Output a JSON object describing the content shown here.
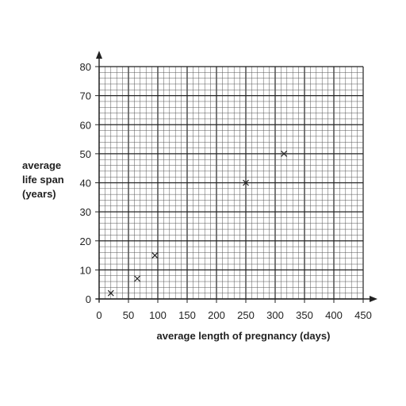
{
  "chart_data": {
    "type": "scatter",
    "title": "",
    "xlabel": "average length of pregnancy (days)",
    "ylabel_lines": [
      "average",
      "life span",
      "(years)"
    ],
    "xlim": [
      0,
      450
    ],
    "ylim": [
      0,
      80
    ],
    "x_ticks": [
      0,
      50,
      100,
      150,
      200,
      250,
      300,
      350,
      400,
      450
    ],
    "y_ticks": [
      0,
      10,
      20,
      30,
      40,
      50,
      60,
      70,
      80
    ],
    "grid": {
      "minor_x": 10,
      "minor_y": 2,
      "major_x": 50,
      "major_y": 10
    },
    "marker": "x",
    "points": [
      {
        "x": 20,
        "y": 2
      },
      {
        "x": 65,
        "y": 7
      },
      {
        "x": 95,
        "y": 15
      },
      {
        "x": 250,
        "y": 40
      },
      {
        "x": 315,
        "y": 50
      }
    ]
  },
  "colors": {
    "line": "#222222",
    "minor_grid": "#555555",
    "major_grid": "#222222"
  }
}
